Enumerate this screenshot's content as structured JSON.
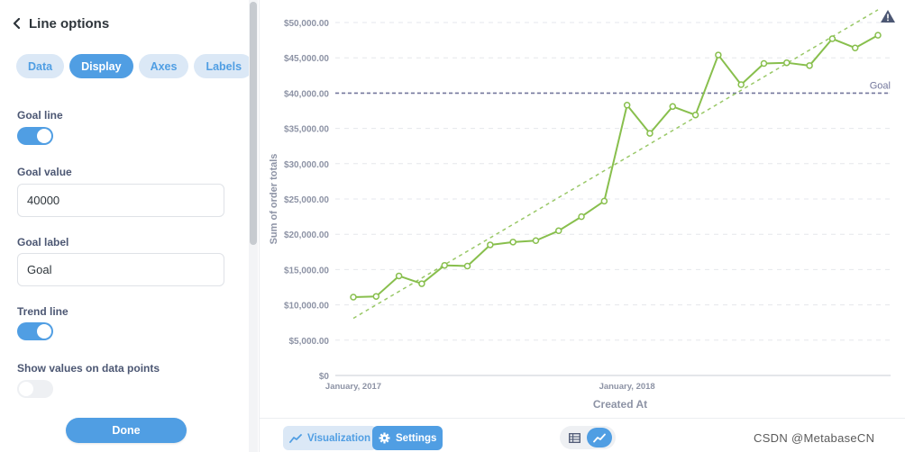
{
  "sidebar": {
    "title": "Line options",
    "tabs": [
      "Data",
      "Display",
      "Axes",
      "Labels"
    ],
    "active_tab": "Display",
    "goal_line_label": "Goal line",
    "goal_line_on": true,
    "goal_value_label": "Goal value",
    "goal_value": "40000",
    "goal_label_label": "Goal label",
    "goal_label_value": "Goal",
    "trend_line_label": "Trend line",
    "trend_line_on": true,
    "show_values_label": "Show values on data points",
    "show_values_on": false,
    "done_label": "Done"
  },
  "footer": {
    "visualization_label": "Visualization",
    "settings_label": "Settings",
    "watermark": "CSDN @MetabaseCN"
  },
  "colors": {
    "brand": "#509ee3",
    "line": "#88bf4d",
    "goal": "#73779c",
    "grid": "#e5e7ec"
  },
  "chart_data": {
    "type": "line",
    "xlabel": "Created At",
    "ylabel": "Sum of order totals",
    "ylim": [
      0,
      50000
    ],
    "y_ticks": [
      0,
      5000,
      10000,
      15000,
      20000,
      25000,
      30000,
      35000,
      40000,
      45000,
      50000
    ],
    "y_tick_labels": [
      "$0",
      "$5,000.00",
      "$10,000.00",
      "$15,000.00",
      "$20,000.00",
      "$25,000.00",
      "$30,000.00",
      "$35,000.00",
      "$40,000.00",
      "$45,000.00",
      "$50,000.00"
    ],
    "x_tick_labels": [
      "January, 2017",
      "January, 2018"
    ],
    "x": [
      "2017-01",
      "2017-02",
      "2017-03",
      "2017-04",
      "2017-05",
      "2017-06",
      "2017-07",
      "2017-08",
      "2017-09",
      "2017-10",
      "2017-11",
      "2017-12",
      "2018-01",
      "2018-02",
      "2018-03",
      "2018-04",
      "2018-05",
      "2018-06",
      "2018-07",
      "2018-08",
      "2018-09",
      "2018-10",
      "2018-11",
      "2018-12"
    ],
    "series": [
      {
        "values": [
          11100,
          11200,
          14100,
          13000,
          15600,
          15500,
          18500,
          18900,
          19100,
          20500,
          22500,
          24700,
          38300,
          34300,
          38100,
          36900,
          45400,
          41200,
          44200,
          44300,
          43900,
          47700,
          46400,
          48200
        ]
      }
    ],
    "goal": {
      "value": 40000,
      "label": "Goal"
    },
    "trend_line": {
      "start": 8100,
      "end": 51800
    },
    "grid": true
  }
}
